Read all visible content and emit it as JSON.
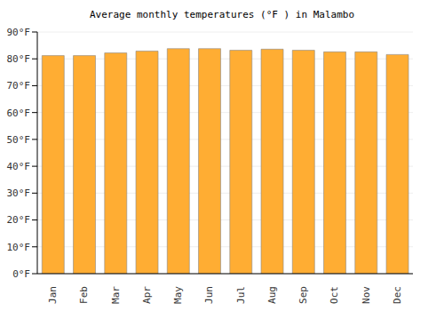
{
  "chart_data": {
    "type": "bar",
    "title": "Average monthly temperatures (°F ) in Malambo",
    "categories": [
      "Jan",
      "Feb",
      "Mar",
      "Apr",
      "May",
      "Jun",
      "Jul",
      "Aug",
      "Sep",
      "Oct",
      "Nov",
      "Dec"
    ],
    "values": [
      81.2,
      81.2,
      82.2,
      82.9,
      83.8,
      83.8,
      83.2,
      83.6,
      83.2,
      82.6,
      82.6,
      81.6
    ],
    "color": "#ffad33",
    "ylim": [
      0,
      90
    ],
    "yticks": [
      {
        "value": 0,
        "label": "0°F"
      },
      {
        "value": 10,
        "label": "10°F"
      },
      {
        "value": 20,
        "label": "20°F"
      },
      {
        "value": 30,
        "label": "30°F"
      },
      {
        "value": 40,
        "label": "40°F"
      },
      {
        "value": 50,
        "label": "50°F"
      },
      {
        "value": 60,
        "label": "60°F"
      },
      {
        "value": 70,
        "label": "70°F"
      },
      {
        "value": 80,
        "label": "80°F"
      },
      {
        "value": 90,
        "label": "90°F"
      }
    ],
    "grid": true
  }
}
